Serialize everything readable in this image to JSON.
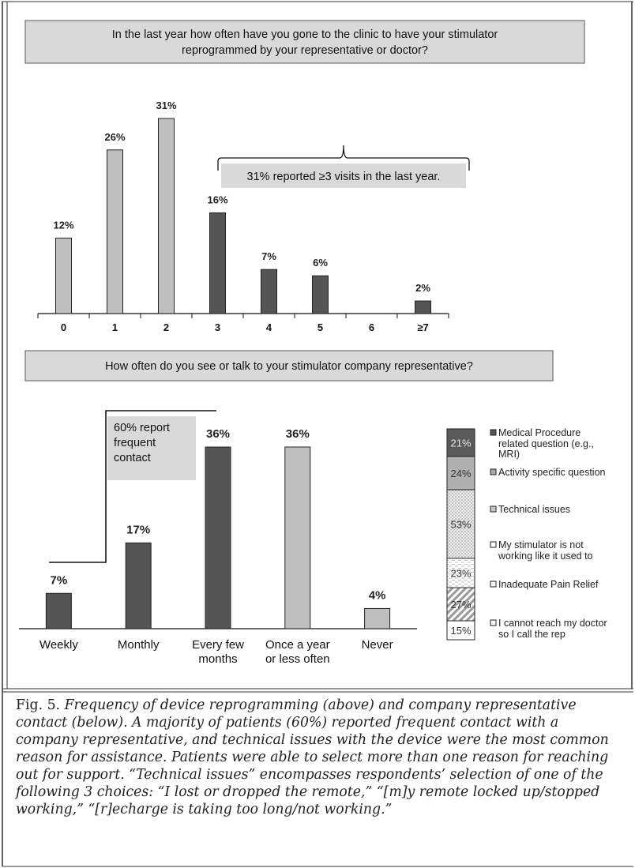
{
  "top": {
    "question": [
      "In the last year how often have you gone to the clinic to have your stimulator",
      "reprogrammed by your representative or doctor?"
    ],
    "annotation": "31% reported ≥3 visits in the last year."
  },
  "bottom": {
    "question": "How often do you see or talk to your stimulator company representative?",
    "annotation": [
      "60% report",
      "frequent",
      "contact"
    ]
  },
  "caption": {
    "label": "Fig. 5.",
    "text": "Frequency of device reprogramming (above) and company representative contact (below). A majority of patients (60%) reported frequent contact with a company representative, and technical issues with the device were the most common reason for assistance. Patients were able to select more than one reason for reaching out for support. “Technical issues” encompasses respondents’ selection of one of the following 3 choices: “I lost or dropped the remote,” “[m]y remote locked up/stopped working,” “[r]echarge is taking too long/not working.”"
  },
  "colors": {
    "dark": "#555555",
    "light": "#bfbfbf",
    "box": "#d9d9d9"
  },
  "chart_data": [
    {
      "type": "bar",
      "categories": [
        "0",
        "1",
        "2",
        "3",
        "4",
        "5",
        "6",
        "≥7"
      ],
      "values": [
        12,
        26,
        31,
        16,
        7,
        6,
        0,
        2
      ],
      "labels": [
        "12%",
        "26%",
        "31%",
        "16%",
        "7%",
        "6%",
        "",
        "2%"
      ],
      "shade": [
        "light",
        "light",
        "light",
        "dark",
        "dark",
        "dark",
        "dark",
        "dark"
      ],
      "ylim": [
        0,
        31
      ]
    },
    {
      "type": "bar",
      "categories": [
        [
          "Weekly"
        ],
        [
          "Monthly"
        ],
        [
          "Every few",
          "months"
        ],
        [
          "Once a year",
          "or less often"
        ],
        [
          "Never"
        ]
      ],
      "values": [
        7,
        17,
        36,
        36,
        4
      ],
      "labels": [
        "7%",
        "17%",
        "36%",
        "36%",
        "4%"
      ],
      "shade": [
        "dark",
        "dark",
        "dark",
        "light",
        "light"
      ],
      "ylim": [
        0,
        36
      ]
    },
    {
      "type": "bar",
      "stacked": true,
      "series": [
        {
          "name": "Medical Procedure related question (e.g., MRI)",
          "label_lines": [
            "Medical Procedure",
            "related question (e.g.,",
            "MRI)"
          ],
          "value": 21,
          "label": "21%",
          "pattern": "dark"
        },
        {
          "name": "Activity specific question",
          "label_lines": [
            "Activity specific question"
          ],
          "value": 24,
          "label": "24%",
          "pattern": "gray"
        },
        {
          "name": "Technical issues",
          "label_lines": [
            "Technical issues"
          ],
          "value": 53,
          "label": "53%",
          "pattern": "dots"
        },
        {
          "name": "My stimulator is not working like it used to",
          "label_lines": [
            "My stimulator is not",
            "working like it used to"
          ],
          "value": 23,
          "label": "23%",
          "pattern": "dashes"
        },
        {
          "name": "Inadequate Pain Relief",
          "label_lines": [
            "Inadequate Pain Relief"
          ],
          "value": 27,
          "label": "27%",
          "pattern": "hatch"
        },
        {
          "name": "I cannot reach my doctor so I call the rep",
          "label_lines": [
            "I cannot reach my doctor",
            "so I call the rep"
          ],
          "value": 15,
          "label": "15%",
          "pattern": "white"
        }
      ]
    }
  ]
}
